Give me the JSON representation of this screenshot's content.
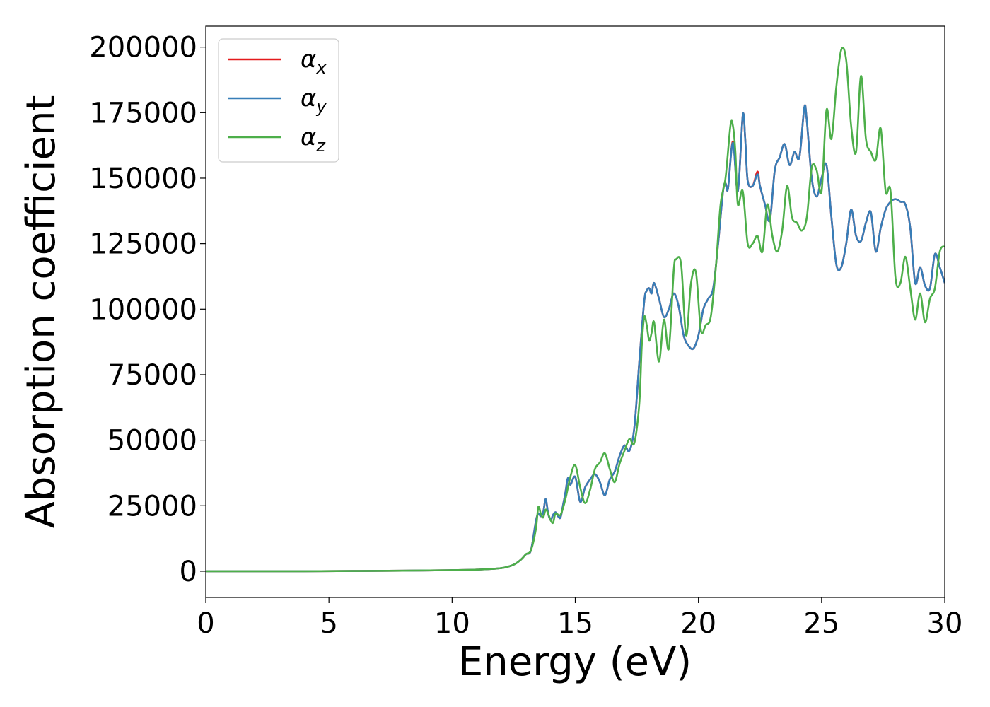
{
  "chart_data": {
    "type": "line",
    "title": "",
    "xlabel": "Energy (eV)",
    "ylabel": "Absorption coefficient",
    "xlim": [
      0,
      30
    ],
    "ylim": [
      -10000,
      208000
    ],
    "grid": false,
    "legend_position": "top-left",
    "xticks": [
      0,
      5,
      10,
      15,
      20,
      25,
      30
    ],
    "xtick_labels": [
      "0",
      "5",
      "10",
      "15",
      "20",
      "25",
      "30"
    ],
    "yticks": [
      0,
      25000,
      50000,
      75000,
      100000,
      125000,
      150000,
      175000,
      200000
    ],
    "ytick_labels": [
      "0",
      "25000",
      "50000",
      "75000",
      "100000",
      "125000",
      "150000",
      "175000",
      "200000"
    ],
    "series": [
      {
        "name": "α",
        "subscript": "x",
        "color": "#e41a1c",
        "x": [
          0,
          2,
          4,
          6,
          8,
          10,
          11,
          12,
          12.5,
          12.8,
          13.0,
          13.2,
          13.4,
          13.5,
          13.6,
          13.7,
          13.8,
          13.9,
          14.0,
          14.1,
          14.2,
          14.3,
          14.4,
          14.5,
          14.6,
          14.7,
          14.8,
          15.0,
          15.2,
          15.4,
          15.6,
          15.8,
          16.0,
          16.2,
          16.4,
          16.6,
          16.8,
          17.0,
          17.2,
          17.4,
          17.6,
          17.8,
          17.9,
          18.0,
          18.1,
          18.2,
          18.4,
          18.6,
          18.8,
          19.0,
          19.2,
          19.4,
          19.6,
          19.8,
          20.0,
          20.2,
          20.4,
          20.6,
          20.8,
          21.0,
          21.1,
          21.2,
          21.4,
          21.6,
          21.8,
          21.9,
          22.0,
          22.2,
          22.4,
          22.5,
          22.7,
          22.9,
          23.1,
          23.3,
          23.5,
          23.7,
          23.9,
          24.1,
          24.3,
          24.4,
          24.6,
          24.8,
          25.0,
          25.2,
          25.4,
          25.6,
          25.8,
          26.0,
          26.2,
          26.4,
          26.6,
          26.8,
          27.0,
          27.2,
          27.4,
          27.6,
          27.8,
          28.0,
          28.2,
          28.4,
          28.6,
          28.8,
          29.0,
          29.2,
          29.4,
          29.6,
          29.8,
          30.0
        ],
        "y": [
          0,
          0,
          0,
          100,
          200,
          400,
          600,
          1200,
          2500,
          4500,
          6500,
          8000,
          19000,
          22000,
          21000,
          22500,
          27500,
          22000,
          19500,
          21500,
          22500,
          21000,
          20500,
          25000,
          30000,
          35500,
          33000,
          36000,
          26500,
          32000,
          35000,
          37000,
          34000,
          29000,
          35000,
          38000,
          44000,
          48000,
          46000,
          55000,
          80000,
          103000,
          107000,
          108000,
          106000,
          110000,
          104000,
          97000,
          100000,
          106000,
          101000,
          90000,
          86000,
          85000,
          90000,
          100000,
          104000,
          108000,
          125000,
          145000,
          148000,
          146000,
          164000,
          145000,
          174000,
          165000,
          149000,
          147000,
          152500,
          147000,
          140000,
          134000,
          153000,
          158000,
          163000,
          155000,
          160000,
          158000,
          177000,
          172000,
          150000,
          143000,
          150000,
          155000,
          135000,
          117000,
          116000,
          125000,
          138000,
          128000,
          126000,
          133000,
          137000,
          122000,
          131000,
          138000,
          141000,
          142000,
          141000,
          140000,
          131000,
          110000,
          116000,
          109000,
          108000,
          121000,
          116000,
          110000
        ]
      },
      {
        "name": "α",
        "subscript": "y",
        "color": "#377eb8",
        "x": [
          0,
          2,
          4,
          6,
          8,
          10,
          11,
          12,
          12.5,
          12.8,
          13.0,
          13.2,
          13.4,
          13.5,
          13.6,
          13.7,
          13.8,
          13.9,
          14.0,
          14.1,
          14.2,
          14.3,
          14.4,
          14.5,
          14.6,
          14.7,
          14.8,
          15.0,
          15.2,
          15.4,
          15.6,
          15.8,
          16.0,
          16.2,
          16.4,
          16.6,
          16.8,
          17.0,
          17.2,
          17.4,
          17.6,
          17.8,
          17.9,
          18.0,
          18.1,
          18.2,
          18.4,
          18.6,
          18.8,
          19.0,
          19.2,
          19.4,
          19.6,
          19.8,
          20.0,
          20.2,
          20.4,
          20.6,
          20.8,
          21.0,
          21.1,
          21.2,
          21.4,
          21.6,
          21.8,
          21.9,
          22.0,
          22.2,
          22.4,
          22.5,
          22.7,
          22.9,
          23.1,
          23.3,
          23.5,
          23.7,
          23.9,
          24.1,
          24.3,
          24.4,
          24.6,
          24.8,
          25.0,
          25.2,
          25.4,
          25.6,
          25.8,
          26.0,
          26.2,
          26.4,
          26.6,
          26.8,
          27.0,
          27.2,
          27.4,
          27.6,
          27.8,
          28.0,
          28.2,
          28.4,
          28.6,
          28.8,
          29.0,
          29.2,
          29.4,
          29.6,
          29.8,
          30.0
        ],
        "y": [
          0,
          0,
          0,
          100,
          200,
          400,
          600,
          1200,
          2500,
          4500,
          6500,
          8000,
          19000,
          22000,
          21000,
          22500,
          27500,
          22000,
          19500,
          21500,
          22500,
          21000,
          20500,
          25000,
          30000,
          35500,
          33000,
          36000,
          26500,
          32000,
          35000,
          37000,
          34000,
          29000,
          35000,
          38000,
          44000,
          48000,
          46000,
          55000,
          80000,
          103000,
          107000,
          108000,
          106000,
          110000,
          104000,
          97000,
          100000,
          106000,
          101000,
          90000,
          86000,
          85000,
          90000,
          100000,
          104000,
          108000,
          125000,
          145000,
          148000,
          146000,
          163500,
          145000,
          174000,
          165000,
          149000,
          147000,
          151500,
          147000,
          140000,
          134000,
          153000,
          158000,
          163000,
          155000,
          160000,
          158000,
          177000,
          172000,
          150000,
          143000,
          150000,
          155000,
          135000,
          117000,
          116000,
          125000,
          138000,
          128000,
          126000,
          133000,
          137000,
          122000,
          131000,
          138000,
          141000,
          142000,
          141000,
          140000,
          131000,
          110000,
          116000,
          109000,
          108000,
          121000,
          116000,
          110000
        ]
      },
      {
        "name": "α",
        "subscript": "z",
        "color": "#4daf4a",
        "x": [
          0,
          2,
          4,
          6,
          8,
          10,
          11,
          12,
          12.5,
          12.8,
          13.0,
          13.2,
          13.4,
          13.5,
          13.6,
          13.7,
          13.8,
          13.9,
          14.0,
          14.1,
          14.2,
          14.4,
          14.6,
          14.8,
          15.0,
          15.2,
          15.4,
          15.6,
          15.8,
          16.0,
          16.2,
          16.4,
          16.6,
          16.8,
          17.0,
          17.2,
          17.4,
          17.6,
          17.7,
          17.8,
          17.9,
          18.0,
          18.1,
          18.2,
          18.4,
          18.6,
          18.8,
          19.0,
          19.1,
          19.3,
          19.5,
          19.7,
          19.9,
          20.1,
          20.3,
          20.5,
          20.7,
          20.9,
          21.1,
          21.3,
          21.4,
          21.5,
          21.6,
          21.8,
          22.0,
          22.2,
          22.4,
          22.6,
          22.8,
          23.0,
          23.2,
          23.4,
          23.6,
          23.8,
          24.0,
          24.2,
          24.4,
          24.6,
          24.8,
          25.0,
          25.2,
          25.4,
          25.6,
          25.8,
          26.0,
          26.2,
          26.4,
          26.6,
          26.8,
          27.0,
          27.2,
          27.4,
          27.6,
          27.8,
          28.0,
          28.2,
          28.4,
          28.6,
          28.8,
          29.0,
          29.2,
          29.4,
          29.6,
          29.8,
          30.0
        ],
        "y": [
          0,
          0,
          0,
          100,
          200,
          400,
          600,
          1200,
          2500,
          4500,
          6500,
          8000,
          16000,
          24500,
          22000,
          20500,
          23500,
          22000,
          19500,
          18500,
          22000,
          21500,
          27500,
          36000,
          40500,
          32000,
          26000,
          31000,
          39000,
          41500,
          45000,
          39000,
          34000,
          41000,
          46000,
          50500,
          49000,
          64000,
          86000,
          97000,
          94000,
          88000,
          91000,
          95000,
          80000,
          96000,
          85000,
          115000,
          119000,
          117000,
          90000,
          110000,
          114000,
          92000,
          94000,
          97000,
          115000,
          140000,
          150000,
          170000,
          170000,
          160000,
          140000,
          145000,
          125000,
          125000,
          128000,
          122000,
          140000,
          128000,
          122000,
          130000,
          147000,
          135000,
          133000,
          130000,
          135000,
          154000,
          153000,
          145000,
          176000,
          165000,
          185000,
          199000,
          195000,
          170000,
          160000,
          189000,
          165000,
          160000,
          157000,
          169000,
          145000,
          145000,
          112000,
          110000,
          120000,
          108000,
          96000,
          106000,
          95000,
          104000,
          108000,
          122000,
          124000
        ]
      }
    ]
  }
}
